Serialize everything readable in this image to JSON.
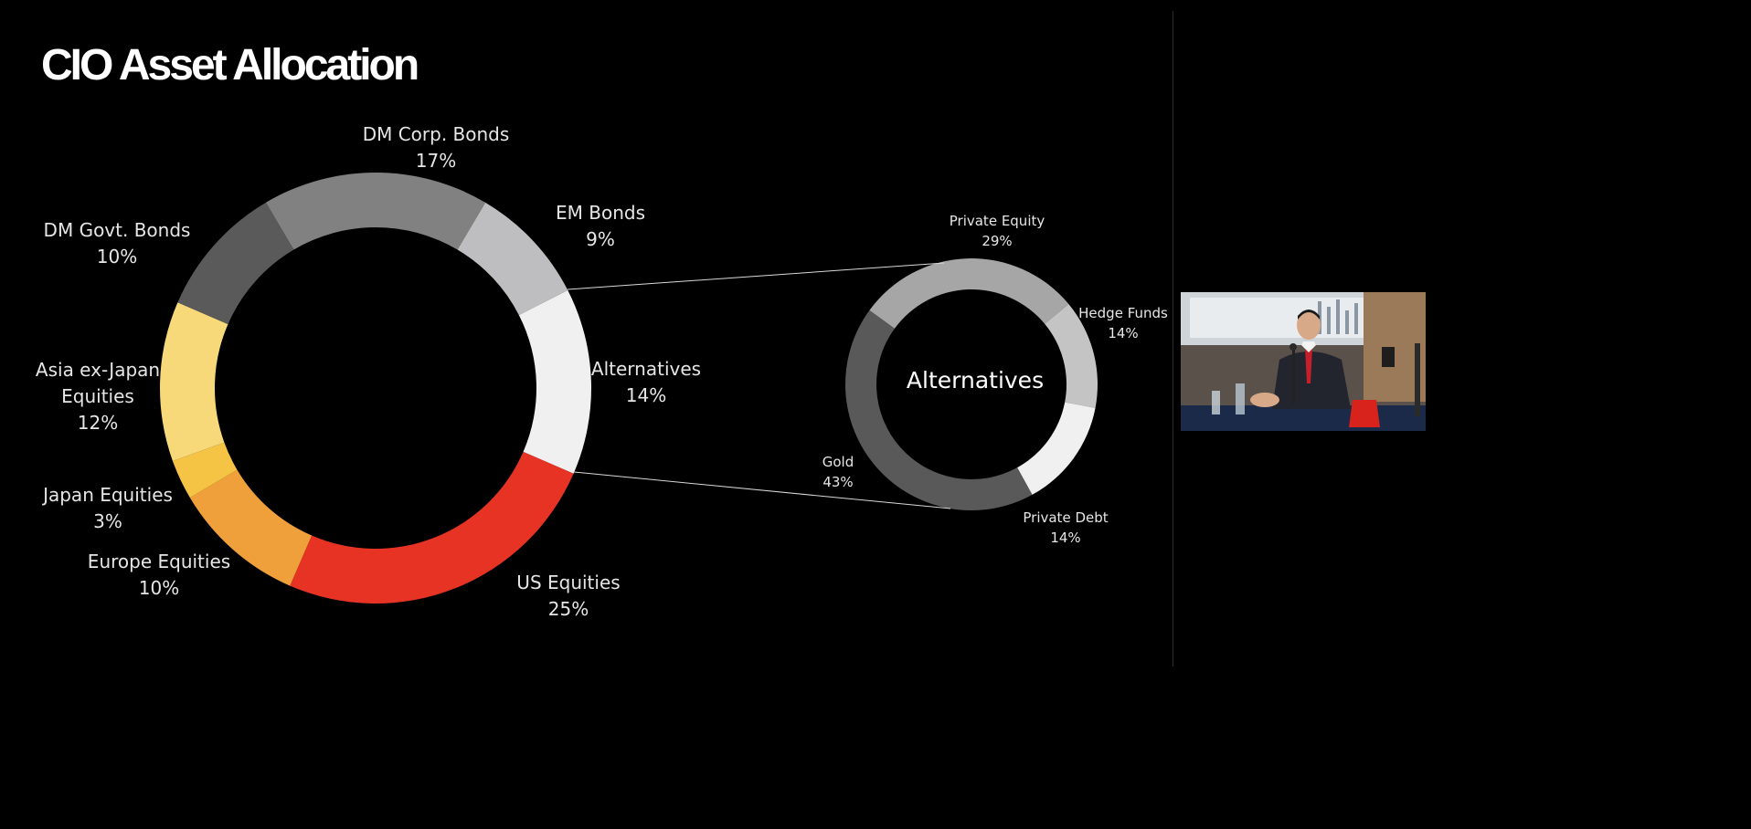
{
  "slide": {
    "title": "CIO Asset Allocation"
  },
  "chart_data": [
    {
      "type": "pie",
      "variant": "donut",
      "slices": [
        {
          "label": "DM Corp. Bonds",
          "value": 17,
          "value_label": "17%",
          "color": "#818181"
        },
        {
          "label": "EM Bonds",
          "value": 9,
          "value_label": "9%",
          "color": "#bebdbf"
        },
        {
          "label": "Alternatives",
          "value": 14,
          "value_label": "14%",
          "color": "#f0f0f0"
        },
        {
          "label": "US Equities",
          "value": 25,
          "value_label": "25%",
          "color": "#e63323"
        },
        {
          "label": "Europe Equities",
          "value": 10,
          "value_label": "10%",
          "color": "#f0a03a"
        },
        {
          "label": "Japan Equities",
          "value": 3,
          "value_label": "3%",
          "color": "#f5c444"
        },
        {
          "label": "Asia ex-Japan Equities",
          "value": 12,
          "value_label": "12%",
          "color": "#f8d97a"
        },
        {
          "label": "DM Govt. Bonds",
          "value": 10,
          "value_label": "10%",
          "color": "#5a5a5a"
        }
      ]
    },
    {
      "type": "pie",
      "variant": "donut",
      "center_label": "Alternatives",
      "slices": [
        {
          "label": "Private Equity",
          "value": 29,
          "value_label": "29%",
          "color": "#a6a6a6"
        },
        {
          "label": "Hedge Funds",
          "value": 14,
          "value_label": "14%",
          "color": "#c4c4c4"
        },
        {
          "label": "Private Debt",
          "value": 14,
          "value_label": "14%",
          "color": "#f0f0f0"
        },
        {
          "label": "Gold",
          "value": 43,
          "value_label": "43%",
          "color": "#595959"
        }
      ]
    }
  ]
}
